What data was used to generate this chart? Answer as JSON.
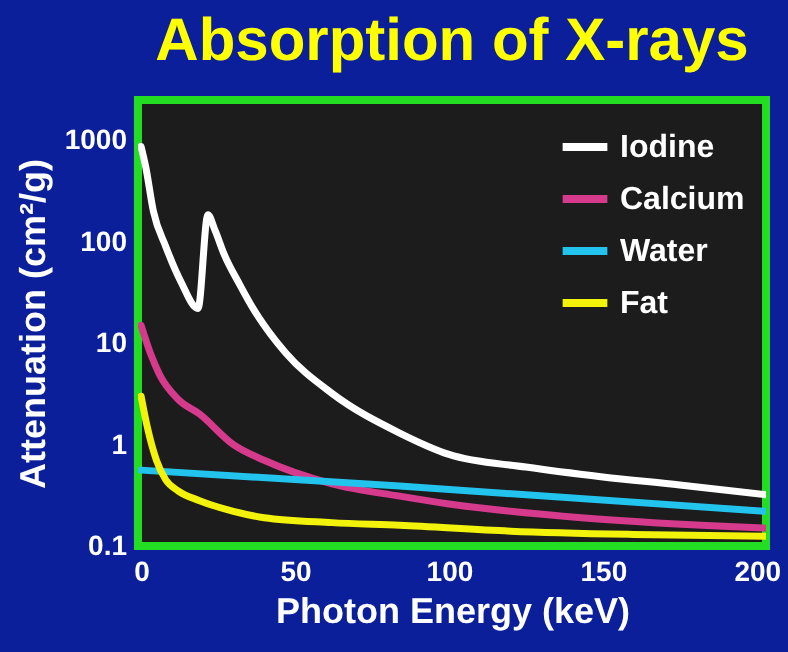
{
  "chart_data": {
    "type": "line",
    "title": "Absorption of X-rays",
    "xlabel": "Photon Energy (keV)",
    "ylabel": "Attenuation (cm²/g)",
    "log": "y",
    "xlim": [
      -1,
      203
    ],
    "xticks": [
      0,
      50,
      100,
      150,
      200
    ],
    "ylim": [
      0.1,
      2500
    ],
    "yticks": [
      0.1,
      1,
      10,
      100,
      1000
    ],
    "grid": false,
    "legend": "top right",
    "series": [
      {
        "name": "Iodine",
        "color": "#ffffff",
        "x": [
          0,
          1.5,
          4,
          8,
          13,
          18.5,
          21.7,
          24,
          27,
          32,
          36,
          47,
          62,
          84,
          100,
          125,
          150,
          175,
          203
        ],
        "values": [
          870,
          550,
          200,
          90,
          40,
          22,
          185,
          130,
          75,
          38,
          23,
          8,
          3.2,
          1.3,
          0.8,
          0.6,
          0.48,
          0.4,
          0.32
        ]
      },
      {
        "name": "Calcium",
        "color": "#d63a8c",
        "x": [
          0,
          3,
          6,
          12,
          19,
          30,
          40,
          62,
          84,
          100,
          143,
          203
        ],
        "values": [
          15,
          8,
          4.9,
          2.8,
          2,
          1,
          0.7,
          0.41,
          0.31,
          0.26,
          0.19,
          0.15
        ]
      },
      {
        "name": "Water",
        "color": "#22c4ee",
        "x": [
          0,
          84,
          203
        ],
        "values": [
          0.56,
          0.39,
          0.22
        ]
      },
      {
        "name": "Fat",
        "color": "#f2f20a",
        "x": [
          0,
          2,
          5,
          8,
          12,
          19,
          30,
          40,
          62,
          84,
          120,
          160,
          203
        ],
        "values": [
          3,
          1.5,
          0.7,
          0.45,
          0.35,
          0.28,
          0.22,
          0.19,
          0.17,
          0.16,
          0.14,
          0.13,
          0.125
        ]
      }
    ]
  }
}
